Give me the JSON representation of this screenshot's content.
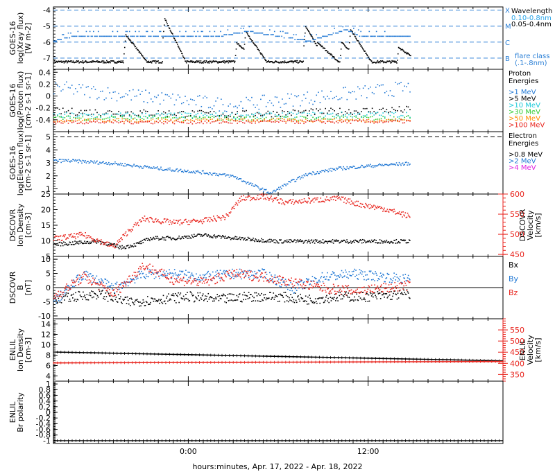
{
  "colors": {
    "black": "#000000",
    "blue": "#1f77d4",
    "lightblue": "#2aa5e8",
    "cyan": "#19c9d8",
    "green": "#33cc33",
    "orange": "#ff8c00",
    "red": "#e8231c",
    "magenta": "#e020e0",
    "dashblue": "#2a7fd6"
  },
  "x_axis": {
    "title": "hours:minutes, Apr. 17, 2022 - Apr. 18, 2022",
    "ticks": [
      "0:00",
      "12:00"
    ],
    "range_hours": [
      -9,
      21
    ]
  },
  "chart_data": [
    {
      "type": "scatter",
      "ylabel": [
        "GOES-16",
        "log(Xray flux)",
        "[W m-2]"
      ],
      "ylim": [
        -7.7,
        -3.8
      ],
      "yticks": [
        -7,
        -6,
        -5,
        -4
      ],
      "hlines": [
        -7,
        -6,
        -5,
        -4
      ],
      "flare_classes": [
        {
          "y": -4,
          "label": "X"
        },
        {
          "y": -5,
          "label": "M"
        },
        {
          "y": -6,
          "label": "C"
        },
        {
          "y": -7,
          "label": "B"
        }
      ],
      "legend_title": "Wavelength",
      "legend": [
        {
          "name": "0.10-0.8nm",
          "color": "lightblue"
        },
        {
          "name": "0.05-0.4nm",
          "color": "black"
        }
      ],
      "legend_note": "flare class",
      "legend_note2": "(.1-.8nm)",
      "series": [
        {
          "name": "0.10-0.8nm",
          "color": "blue",
          "base": -5.9,
          "steps": [
            [
              -9,
              -5.9
            ],
            [
              -7.6,
              -5.6
            ],
            [
              -3.5,
              -5.6
            ],
            [
              -2.2,
              -5.6
            ],
            [
              0.5,
              -5.6
            ],
            [
              2,
              -5.6
            ],
            [
              4,
              -5.3
            ],
            [
              6,
              -5.6
            ],
            [
              8,
              -5.9
            ],
            [
              10.5,
              -5.2
            ],
            [
              11.5,
              -5.6
            ],
            [
              13,
              -5.6
            ],
            [
              14.5,
              -5.6
            ]
          ],
          "end": 14.8
        },
        {
          "name": "0.05-0.4nm",
          "color": "black",
          "base": -7.2,
          "peaks": [
            [
              -4.2,
              -5.5
            ],
            [
              -1.6,
              -4.5
            ],
            [
              3.2,
              -6.0
            ],
            [
              3.8,
              -5.3
            ],
            [
              7.8,
              -5.0
            ],
            [
              8.6,
              -6.0
            ],
            [
              10.2,
              -6.0
            ],
            [
              10.8,
              -5.2
            ],
            [
              14.0,
              -6.3
            ]
          ],
          "end": 14.8
        }
      ]
    },
    {
      "type": "scatter",
      "ylabel": [
        "GOES-16",
        "log(Proton flux)",
        "[cm-2 s-1 sr-1]"
      ],
      "ylim": [
        -0.6,
        0.45
      ],
      "yticks": [
        -0.4,
        -0.2,
        0.0,
        0.2,
        0.4
      ],
      "legend_title": "Proton",
      "legend_title2": "Energies",
      "legend": [
        {
          "name": ">1 MeV",
          "color": "blue"
        },
        {
          "name": ">5 MeV",
          "color": "black"
        },
        {
          "name": ">10 MeV",
          "color": "cyan"
        },
        {
          "name": ">30 MeV",
          "color": "green"
        },
        {
          "name": ">50 MeV",
          "color": "orange"
        },
        {
          "name": ">100 MeV",
          "color": "red"
        }
      ],
      "series": [
        {
          "name": ">1 MeV",
          "color": "blue",
          "start": 0.15,
          "mid": -0.15,
          "end": 0.15,
          "noise": 0.12
        },
        {
          "name": ">5 MeV",
          "color": "black",
          "start": -0.25,
          "mid": -0.3,
          "end": -0.22,
          "noise": 0.06
        },
        {
          "name": ">10 MeV",
          "color": "cyan",
          "start": -0.32,
          "mid": -0.32,
          "end": -0.3,
          "noise": 0.05
        },
        {
          "name": ">30 MeV",
          "color": "green",
          "start": -0.36,
          "mid": -0.37,
          "end": -0.36,
          "noise": 0.04
        },
        {
          "name": ">50 MeV",
          "color": "orange",
          "start": -0.4,
          "mid": -0.4,
          "end": -0.4,
          "noise": 0.03
        },
        {
          "name": ">100 MeV",
          "color": "red",
          "start": -0.43,
          "mid": -0.43,
          "end": -0.42,
          "noise": 0.03
        }
      ],
      "end": 14.8
    },
    {
      "type": "scatter",
      "ylabel": [
        "GOES-16",
        "log(Electron flux)",
        "[cm-2 s-1 sr-1]"
      ],
      "ylim": [
        0.6,
        5.4
      ],
      "yticks": [
        1,
        2,
        3,
        4,
        5
      ],
      "hlines": [
        5
      ],
      "legend_title": "Electron",
      "legend_title2": "Energies",
      "legend": [
        {
          "name": ">0.8 MeV",
          "color": "black"
        },
        {
          "name": ">2 MeV",
          "color": "blue"
        },
        {
          "name": ">4 MeV",
          "color": "magenta"
        }
      ],
      "series": [
        {
          "name": ">2 MeV",
          "color": "blue",
          "profile": [
            [
              -8,
              3.2
            ],
            [
              -5,
              3.0
            ],
            [
              -2,
              2.6
            ],
            [
              1,
              2.3
            ],
            [
              3,
              2.0
            ],
            [
              4.5,
              1.2
            ],
            [
              5.5,
              0.7
            ],
            [
              6.5,
              1.4
            ],
            [
              8,
              2.2
            ],
            [
              10,
              2.6
            ],
            [
              12,
              2.8
            ],
            [
              14.8,
              3.0
            ]
          ]
        }
      ]
    },
    {
      "type": "scatter",
      "ylabel": [
        "DSCOVR",
        "Ion Density",
        "[cm-3]"
      ],
      "ylim": [
        5,
        25
      ],
      "yticks": [
        5,
        10,
        15,
        20,
        25
      ],
      "y2label": [
        "DSCOVR",
        "Velocity",
        "[km/s]"
      ],
      "y2lim": [
        445,
        600
      ],
      "y2ticks": [
        450,
        500,
        550,
        600
      ],
      "series": [
        {
          "name": "Ion Density",
          "color": "black",
          "profile": [
            [
              -9,
              9
            ],
            [
              -6,
              10
            ],
            [
              -4.5,
              8
            ],
            [
              -3.5,
              9
            ],
            [
              -2.5,
              11
            ],
            [
              -1,
              11
            ],
            [
              1,
              12
            ],
            [
              3,
              11
            ],
            [
              6,
              10
            ],
            [
              9,
              10
            ],
            [
              12,
              10
            ],
            [
              14.8,
              10
            ]
          ]
        },
        {
          "name": "Velocity",
          "color": "red",
          "axis": 2,
          "profile": [
            [
              -9,
              490
            ],
            [
              -7,
              500
            ],
            [
              -5,
              470
            ],
            [
              -4,
              510
            ],
            [
              -3,
              540
            ],
            [
              -1,
              530
            ],
            [
              1,
              535
            ],
            [
              2.5,
              545
            ],
            [
              3.5,
              590
            ],
            [
              5,
              595
            ],
            [
              6.5,
              580
            ],
            [
              8,
              585
            ],
            [
              10,
              590
            ],
            [
              11.5,
              575
            ],
            [
              13,
              565
            ],
            [
              14.8,
              545
            ]
          ]
        }
      ]
    },
    {
      "type": "scatter",
      "ylabel": [
        "DSCOVR",
        "B",
        "[nT]"
      ],
      "ylim": [
        -11,
        11
      ],
      "yticks": [
        -10,
        -5,
        0,
        5,
        10
      ],
      "hlines": [
        0
      ],
      "legend": [
        {
          "name": "Bx",
          "color": "black"
        },
        {
          "name": "By",
          "color": "blue"
        },
        {
          "name": "Bz",
          "color": "red"
        }
      ],
      "series": [
        {
          "name": "Bx",
          "color": "black",
          "profile": [
            [
              -9,
              -4
            ],
            [
              -6,
              -2
            ],
            [
              -4,
              -5
            ],
            [
              -2,
              -4
            ],
            [
              0,
              -3
            ],
            [
              2,
              -4
            ],
            [
              4,
              -3
            ],
            [
              6,
              -3
            ],
            [
              8,
              -4
            ],
            [
              10,
              -3
            ],
            [
              12,
              -3
            ],
            [
              14.8,
              -2
            ]
          ]
        },
        {
          "name": "By",
          "color": "blue",
          "profile": [
            [
              -9,
              -5
            ],
            [
              -7,
              5
            ],
            [
              -5,
              0
            ],
            [
              -3,
              5
            ],
            [
              -1,
              5
            ],
            [
              1,
              4
            ],
            [
              3,
              5
            ],
            [
              5,
              5
            ],
            [
              7,
              0
            ],
            [
              9,
              4
            ],
            [
              11,
              5
            ],
            [
              13,
              4
            ],
            [
              14.8,
              3
            ]
          ]
        },
        {
          "name": "Bz",
          "color": "red",
          "profile": [
            [
              -9,
              -3
            ],
            [
              -7,
              4
            ],
            [
              -5,
              -2
            ],
            [
              -3,
              8
            ],
            [
              -1,
              3
            ],
            [
              1,
              2
            ],
            [
              3,
              5
            ],
            [
              5,
              4
            ],
            [
              7,
              2
            ],
            [
              9,
              0
            ],
            [
              11,
              -1
            ],
            [
              13,
              0
            ],
            [
              14.8,
              1
            ]
          ]
        }
      ]
    },
    {
      "type": "line",
      "ylabel": [
        "ENLIL",
        "Ion Density",
        "[cm-3]"
      ],
      "ylim": [
        3,
        15
      ],
      "yticks": [
        4,
        6,
        8,
        10,
        12,
        14
      ],
      "y2label": [
        "ENLIL",
        "Velocity",
        "[km/s]"
      ],
      "y2lim": [
        320,
        600
      ],
      "y2ticks": [
        350,
        400,
        450,
        500,
        550
      ],
      "series": [
        {
          "name": "Ion Density",
          "color": "black",
          "x": [
            -9,
            21
          ],
          "values": [
            8.6,
            6.9
          ]
        },
        {
          "name": "Velocity",
          "color": "red",
          "axis": 2,
          "x": [
            -9,
            21
          ],
          "values": [
            402,
            408
          ]
        }
      ]
    },
    {
      "type": "line",
      "ylabel": [
        "ENLIL",
        "Br polarity"
      ],
      "ylim": [
        -1.1,
        1.1
      ],
      "yticks": [
        -1.0,
        -0.8,
        -0.6,
        -0.4,
        -0.2,
        0.0,
        0.2,
        0.4,
        0.6,
        0.8,
        1.0
      ],
      "series": [
        {
          "name": "Br polarity",
          "color": "black",
          "x": [
            -9,
            21
          ],
          "values": [
            -1.0,
            -1.0
          ]
        }
      ]
    }
  ]
}
